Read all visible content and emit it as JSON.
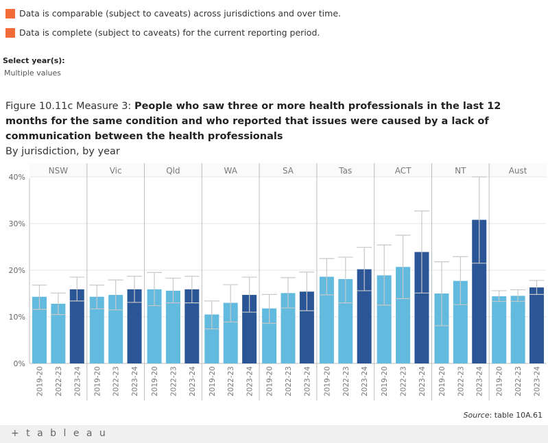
{
  "legend": [
    {
      "text": "Data is comparable (subject to caveats) across jurisdictions and over time.",
      "color": "#f26b38"
    },
    {
      "text": "Data is complete (subject to caveats) for the current reporting period.",
      "color": "#f26b38"
    }
  ],
  "filter": {
    "title": "Select year(s):",
    "value": "Multiple values"
  },
  "figure": {
    "prefix": "Figure 10.11c Measure 3: ",
    "title": "People who saw three or more health professionals in the last 12 months for the same condition and who reported that issues were caused by a lack of communication between the health professionals",
    "subtitle": "By jurisdiction, by year"
  },
  "source": {
    "label": "Source",
    "text": ": table 10A.61"
  },
  "footer": {
    "logo": "+ t a b l e a u"
  },
  "colors": {
    "light": "#62bbdf",
    "dark": "#2a5597",
    "error": "#c8c8c8",
    "grid": "#e6e6e6",
    "panel": "#bdbdbd"
  },
  "chart_data": {
    "type": "bar",
    "ylabel": "",
    "ylim": [
      0,
      40
    ],
    "yticks": [
      "0%",
      "10%",
      "20%",
      "30%",
      "40%"
    ],
    "years": [
      "2019-20",
      "2022-23",
      "2023-24"
    ],
    "jurisdictions": [
      {
        "name": "NSW",
        "values": [
          14.3,
          12.8,
          15.9
        ],
        "lower": [
          11.6,
          10.5,
          13.4
        ],
        "upper": [
          16.8,
          15.1,
          18.5
        ]
      },
      {
        "name": "Vic",
        "values": [
          14.3,
          14.7,
          15.9
        ],
        "lower": [
          11.7,
          11.5,
          13.1
        ],
        "upper": [
          16.8,
          17.9,
          18.7
        ]
      },
      {
        "name": "Qld",
        "values": [
          15.9,
          15.6,
          15.9
        ],
        "lower": [
          12.4,
          13.0,
          13.0
        ],
        "upper": [
          19.5,
          18.3,
          18.7
        ]
      },
      {
        "name": "WA",
        "values": [
          10.5,
          13.0,
          14.7
        ],
        "lower": [
          7.4,
          8.9,
          11.0
        ],
        "upper": [
          13.4,
          16.9,
          18.5
        ]
      },
      {
        "name": "SA",
        "values": [
          11.8,
          15.1,
          15.4
        ],
        "lower": [
          8.6,
          11.9,
          11.3
        ],
        "upper": [
          14.8,
          18.4,
          19.6
        ]
      },
      {
        "name": "Tas",
        "values": [
          18.6,
          18.1,
          20.2
        ],
        "lower": [
          14.7,
          13.0,
          15.6
        ],
        "upper": [
          22.5,
          22.8,
          24.9
        ]
      },
      {
        "name": "ACT",
        "values": [
          18.9,
          20.7,
          23.9
        ],
        "lower": [
          12.5,
          13.9,
          15.1
        ],
        "upper": [
          25.4,
          27.5,
          32.7
        ]
      },
      {
        "name": "NT",
        "values": [
          15.0,
          17.7,
          30.8
        ],
        "lower": [
          8.1,
          12.6,
          21.5
        ],
        "upper": [
          21.8,
          22.9,
          40.0
        ]
      },
      {
        "name": "Aust",
        "values": [
          14.4,
          14.5,
          16.3
        ],
        "lower": [
          13.3,
          13.3,
          14.8
        ],
        "upper": [
          15.6,
          15.8,
          17.8
        ]
      }
    ]
  }
}
